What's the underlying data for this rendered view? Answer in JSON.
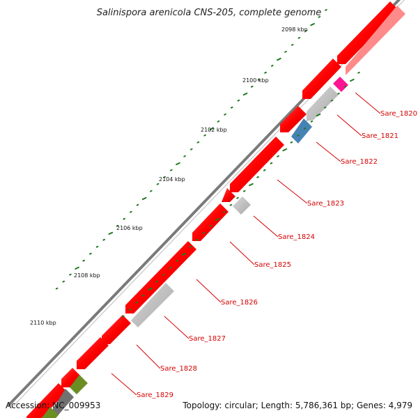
{
  "title": "Salinispora arenicola CNS-205, complete genome",
  "footer": {
    "accession": "Accession: NC_009953",
    "summary": "Topology: circular; Length: 5,786,361 bp; Genes: 4,979"
  },
  "kbp_ticks": [
    "2098 kbp",
    "2100 kbp",
    "2102 kbp",
    "2104 kbp",
    "2106 kbp",
    "2108 kbp",
    "2110 kbp"
  ],
  "gene_labels": [
    "Sare_1820",
    "Sare_1821",
    "Sare_1822",
    "Sare_1823",
    "Sare_1824",
    "Sare_1825",
    "Sare_1826",
    "Sare_1827",
    "Sare_1828",
    "Sare_1829"
  ],
  "colors": {
    "backbone": "#7a7a7a",
    "cds": "#ff0000",
    "cds_light": "#ff8a8a",
    "grey": "#bdbdbd",
    "dark_grey": "#707070",
    "magenta": "#ff1493",
    "blue": "#4682b4",
    "olive": "#6b8e23",
    "tick": "#1e7a1e",
    "label": "#d40000"
  }
}
